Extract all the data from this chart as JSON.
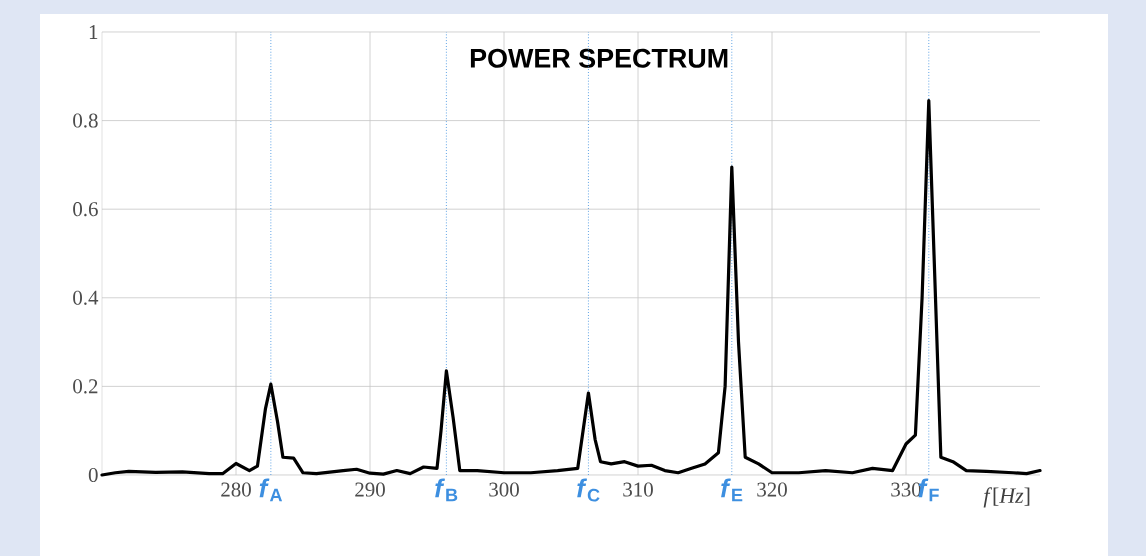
{
  "chart_data": {
    "type": "line",
    "title": "POWER SPECTRUM",
    "xlabel": "*f*[*Hz*]",
    "xlim": [
      270,
      340
    ],
    "ylim": [
      0,
      1
    ],
    "xticks": [
      280,
      290,
      300,
      310,
      320,
      330
    ],
    "yticks": [
      0,
      0.2,
      0.4,
      0.6,
      0.8,
      1
    ],
    "grid": true,
    "marker": "none",
    "line_style": "solid",
    "x": [
      270,
      271,
      272,
      274,
      276,
      278,
      279,
      280,
      281,
      281.6,
      282.2,
      282.6,
      283.1,
      283.5,
      284.3,
      285,
      286,
      288,
      289,
      290,
      291,
      292,
      293,
      294,
      295,
      295.3,
      295.7,
      296.2,
      296.7,
      298,
      300,
      302,
      304,
      305.5,
      305.9,
      306.3,
      306.8,
      307.2,
      308,
      309,
      310,
      311,
      312,
      313,
      314,
      315,
      316,
      316.5,
      317,
      317.5,
      318,
      319,
      320,
      322,
      324,
      326,
      327.5,
      329,
      330,
      330.7,
      331.2,
      331.7,
      332.2,
      332.6,
      333.5,
      334.5,
      336,
      338,
      339,
      340
    ],
    "series": [
      {
        "color": "#000000",
        "values": [
          0.0,
          0.005,
          0.008,
          0.006,
          0.007,
          0.003,
          0.003,
          0.026,
          0.01,
          0.02,
          0.15,
          0.205,
          0.12,
          0.04,
          0.038,
          0.005,
          0.003,
          0.01,
          0.013,
          0.004,
          0.002,
          0.01,
          0.003,
          0.018,
          0.015,
          0.1,
          0.235,
          0.13,
          0.01,
          0.01,
          0.005,
          0.005,
          0.01,
          0.015,
          0.1,
          0.185,
          0.08,
          0.03,
          0.025,
          0.03,
          0.02,
          0.022,
          0.01,
          0.005,
          0.015,
          0.025,
          0.05,
          0.2,
          0.695,
          0.3,
          0.04,
          0.025,
          0.005,
          0.005,
          0.01,
          0.005,
          0.015,
          0.01,
          0.07,
          0.09,
          0.4,
          0.845,
          0.4,
          0.04,
          0.03,
          0.01,
          0.008,
          0.005,
          0.003,
          0.01
        ]
      }
    ],
    "ref_lines": [
      {
        "axis": "x",
        "value": 282.6,
        "label": "*f*$_{A}$",
        "color": "#3d8fe0",
        "line_style": "dotted"
      },
      {
        "axis": "x",
        "value": 295.7,
        "label": "*f*$_{B}$",
        "color": "#3d8fe0",
        "line_style": "dotted"
      },
      {
        "axis": "x",
        "value": 306.3,
        "label": "*f*$_{C}$",
        "color": "#3d8fe0",
        "line_style": "dotted"
      },
      {
        "axis": "x",
        "value": 317.0,
        "label": "*f*$_{E}$",
        "color": "#3d8fe0",
        "line_style": "dotted"
      },
      {
        "axis": "x",
        "value": 331.7,
        "label": "*f*$_{F}$",
        "color": "#3d8fe0",
        "line_style": "dotted"
      }
    ]
  }
}
